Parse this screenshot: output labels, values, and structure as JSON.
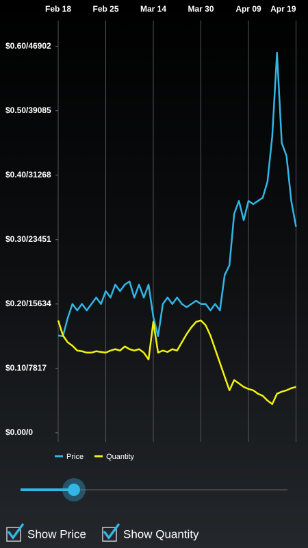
{
  "chart_data": {
    "type": "line",
    "categories": [
      "Feb 18",
      null,
      null,
      null,
      null,
      null,
      null,
      null,
      null,
      null,
      "Feb 25",
      null,
      null,
      null,
      null,
      null,
      null,
      null,
      null,
      null,
      "Mar 14",
      null,
      null,
      null,
      null,
      null,
      null,
      null,
      null,
      null,
      "Mar 30",
      null,
      null,
      null,
      null,
      null,
      null,
      null,
      null,
      null,
      "Apr 09",
      null,
      null,
      null,
      null,
      null,
      null,
      null,
      null,
      null,
      "Apr 19"
    ],
    "ylim": [
      -0.014,
      0.64
    ],
    "yticks": [
      {
        "value": 0,
        "label": "$0.00/0"
      },
      {
        "value": 0.1,
        "label": "$0.10/7817"
      },
      {
        "value": 0.2,
        "label": "$0.20/15634"
      },
      {
        "value": 0.3,
        "label": "$0.30/23451"
      },
      {
        "value": 0.4,
        "label": "$0.40/31268"
      },
      {
        "value": 0.5,
        "label": "$0.50/39085"
      },
      {
        "value": 0.6,
        "label": "$0.60/46902"
      }
    ],
    "y2lim": [
      -1094,
      50029
    ],
    "grid": "x",
    "series": [
      {
        "name": "Price",
        "color": "#33b5e5",
        "values": [
          0.151,
          0.15,
          0.178,
          0.2,
          0.19,
          0.2,
          0.19,
          0.2,
          0.21,
          0.2,
          0.22,
          0.21,
          0.23,
          0.22,
          0.23,
          0.235,
          0.21,
          0.23,
          0.21,
          0.23,
          0.18,
          0.15,
          0.2,
          0.21,
          0.2,
          0.21,
          0.2,
          0.195,
          0.2,
          0.205,
          0.2,
          0.2,
          0.19,
          0.2,
          0.19,
          0.245,
          0.26,
          0.34,
          0.36,
          0.33,
          0.36,
          0.355,
          0.36,
          0.365,
          0.39,
          0.46,
          0.59,
          0.45,
          0.43,
          0.36,
          0.32
        ]
      },
      {
        "name": "Quantity",
        "color": "#f2f20f",
        "axis": "y2",
        "values": [
          13640,
          11810,
          10980,
          10560,
          9980,
          9900,
          9730,
          9730,
          9900,
          9810,
          9730,
          9980,
          10150,
          9980,
          10480,
          10150,
          9980,
          10150,
          9730,
          8900,
          13470,
          9730,
          9980,
          9810,
          10150,
          9980,
          10980,
          11980,
          12810,
          13470,
          13640,
          13060,
          11810,
          10150,
          8480,
          6820,
          5160,
          6400,
          5990,
          5570,
          5320,
          5160,
          4740,
          4490,
          3910,
          3490,
          4740,
          4990,
          5160,
          5410,
          5570
        ]
      }
    ]
  },
  "controls": {
    "checkboxes": [
      {
        "label": "Show Price",
        "checked": true
      },
      {
        "label": "Show Quantity",
        "checked": true
      }
    ]
  }
}
